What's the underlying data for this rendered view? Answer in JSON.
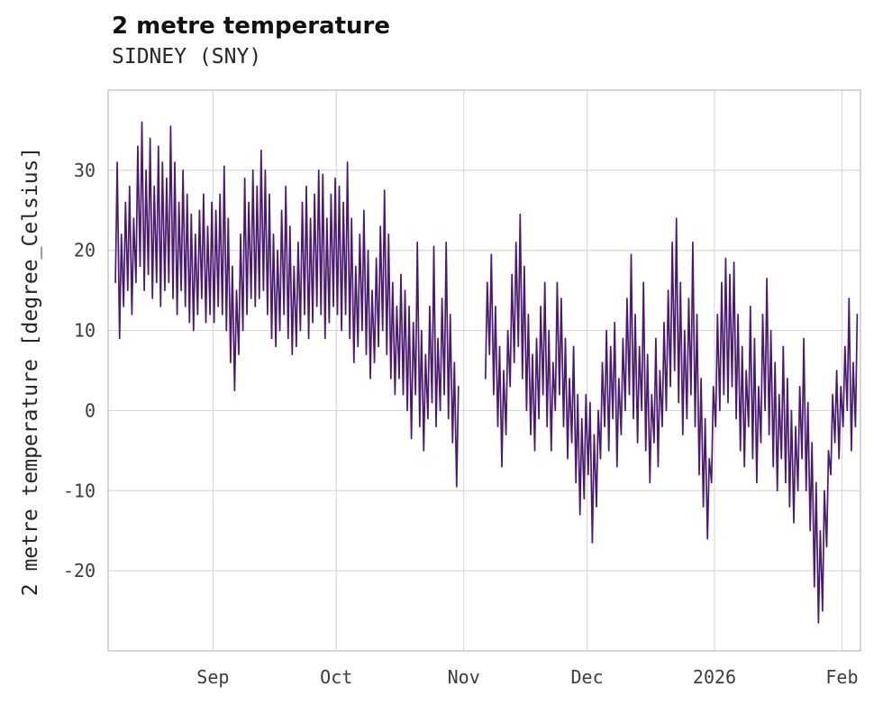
{
  "header": {
    "title": "2 metre temperature",
    "subtitle": "SIDNEY (SNY)"
  },
  "chart_data": {
    "type": "line",
    "title": "2 metre temperature",
    "subtitle": "SIDNEY (SNY)",
    "xlabel": "",
    "ylabel": "2 metre temperature [degree_Celsius]",
    "legend_position": "none",
    "grid": true,
    "line_color": "#4a1a70",
    "grid_color": "#d9d9d9",
    "border_color": "#c8c8c8",
    "tick_color": "#3d3d3d",
    "ylim": [
      -30,
      40
    ],
    "y_ticks": [
      -20,
      -10,
      0,
      10,
      20,
      30
    ],
    "x_range_days": [
      -1.5,
      181.5
    ],
    "x_ticks": [
      {
        "day": 24,
        "label": "Sep"
      },
      {
        "day": 54,
        "label": "Oct"
      },
      {
        "day": 85,
        "label": "Nov"
      },
      {
        "day": 115,
        "label": "Dec"
      },
      {
        "day": 146,
        "label": "2026"
      },
      {
        "day": 177,
        "label": "Feb"
      }
    ],
    "notes": "Hourly-resolution temperature trace shown as daily min/max envelope; data gap of ~6 days just before the Nov tick; absolute max ~36, absolute min ~-26.5 late January.",
    "series": [
      {
        "name": "2 metre temperature",
        "unit": "degree_Celsius",
        "daily_min_max": [
          [
            16,
            31
          ],
          [
            9,
            22
          ],
          [
            13,
            26
          ],
          [
            15,
            28
          ],
          [
            12,
            24
          ],
          [
            16,
            33
          ],
          [
            18,
            36
          ],
          [
            15,
            30
          ],
          [
            17,
            34
          ],
          [
            14,
            28
          ],
          [
            16,
            33
          ],
          [
            13,
            31
          ],
          [
            15,
            29
          ],
          [
            16,
            35.5
          ],
          [
            14,
            31
          ],
          [
            12,
            26
          ],
          [
            15,
            30
          ],
          [
            13,
            27
          ],
          [
            11,
            24.5
          ],
          [
            10,
            22
          ],
          [
            12,
            25
          ],
          [
            14,
            27
          ],
          [
            11,
            23
          ],
          [
            12,
            26
          ],
          [
            11,
            25
          ],
          [
            13,
            27
          ],
          [
            12,
            30.5
          ],
          [
            10,
            24
          ],
          [
            6,
            18
          ],
          [
            2.5,
            15
          ],
          [
            7,
            22
          ],
          [
            10,
            29
          ],
          [
            12,
            26
          ],
          [
            14,
            30
          ],
          [
            13,
            28
          ],
          [
            14,
            32.5
          ],
          [
            15,
            30
          ],
          [
            12,
            27
          ],
          [
            9,
            22
          ],
          [
            8,
            20
          ],
          [
            10,
            25
          ],
          [
            12,
            28
          ],
          [
            9,
            23
          ],
          [
            7,
            18
          ],
          [
            8,
            21
          ],
          [
            10,
            26
          ],
          [
            12,
            28
          ],
          [
            9,
            24
          ],
          [
            11,
            27
          ],
          [
            13,
            30
          ],
          [
            12,
            29.5
          ],
          [
            9,
            24
          ],
          [
            11,
            27
          ],
          [
            13,
            29
          ],
          [
            12,
            28
          ],
          [
            10,
            26
          ],
          [
            12,
            31
          ],
          [
            9,
            24
          ],
          [
            6,
            18
          ],
          [
            8,
            22
          ],
          [
            10,
            25
          ],
          [
            7,
            20
          ],
          [
            4,
            15
          ],
          [
            6,
            19
          ],
          [
            8,
            23
          ],
          [
            10,
            27.5
          ],
          [
            7,
            22
          ],
          [
            4,
            16
          ],
          [
            2,
            13
          ],
          [
            4,
            17
          ],
          [
            2,
            15
          ],
          [
            0,
            13
          ],
          [
            -3.5,
            11
          ],
          [
            2,
            21
          ],
          [
            -2,
            10
          ],
          [
            -5,
            7
          ],
          [
            -1,
            13
          ],
          [
            1,
            20.5
          ],
          [
            -2,
            9
          ],
          [
            0,
            14
          ],
          [
            2,
            21
          ],
          [
            -1,
            12
          ],
          [
            -4,
            6
          ],
          [
            -9.5,
            3
          ],
          null,
          null,
          null,
          null,
          null,
          null,
          [
            4,
            16
          ],
          [
            7,
            19.5
          ],
          [
            2,
            13
          ],
          [
            -2,
            8
          ],
          [
            -7,
            5
          ],
          [
            -3,
            10
          ],
          [
            3,
            17
          ],
          [
            6,
            21
          ],
          [
            8,
            24.5
          ],
          [
            4,
            18
          ],
          [
            0,
            12
          ],
          [
            -3,
            7
          ],
          [
            -5,
            9
          ],
          [
            -1,
            13
          ],
          [
            2,
            16
          ],
          [
            -2,
            10
          ],
          [
            -5,
            6
          ],
          [
            0,
            16
          ],
          [
            2,
            14
          ],
          [
            -2,
            9
          ],
          [
            -6,
            4
          ],
          [
            -4,
            8
          ],
          [
            -9,
            2
          ],
          [
            -13,
            -1
          ],
          [
            -11,
            2
          ],
          [
            -8,
            1
          ],
          [
            -16.5,
            -3
          ],
          [
            -12,
            0
          ],
          [
            -6,
            6
          ],
          [
            -2,
            10
          ],
          [
            -5,
            8
          ],
          [
            -1,
            11
          ],
          [
            -7,
            4
          ],
          [
            -3,
            9
          ],
          [
            0,
            14
          ],
          [
            2,
            19.5
          ],
          [
            -1,
            12
          ],
          [
            -4,
            8
          ],
          [
            0,
            16
          ],
          [
            -5,
            7
          ],
          [
            -9,
            2
          ],
          [
            -4,
            9
          ],
          [
            -7,
            5
          ],
          [
            -2,
            11
          ],
          [
            0,
            15
          ],
          [
            3,
            21
          ],
          [
            5,
            24
          ],
          [
            1,
            16
          ],
          [
            -3,
            10
          ],
          [
            -1,
            14
          ],
          [
            2,
            21
          ],
          [
            -2,
            12
          ],
          [
            -8,
            4
          ],
          [
            -12,
            -1
          ],
          [
            -16,
            -6
          ],
          [
            -9,
            3
          ],
          [
            -2,
            12
          ],
          [
            0,
            16
          ],
          [
            2,
            19
          ],
          [
            1,
            17
          ],
          [
            3,
            18.5
          ],
          [
            -1,
            12
          ],
          [
            -5,
            8
          ],
          [
            -7,
            5
          ],
          [
            -2,
            13
          ],
          [
            -6,
            9
          ],
          [
            -9,
            3
          ],
          [
            -4,
            12
          ],
          [
            0,
            16.5
          ],
          [
            -3,
            10
          ],
          [
            -7,
            6
          ],
          [
            -10,
            2
          ],
          [
            -6,
            8
          ],
          [
            -9,
            4
          ],
          [
            -12,
            0
          ],
          [
            -14,
            -2
          ],
          [
            -10,
            3
          ],
          [
            -6,
            9
          ],
          [
            -10,
            1
          ],
          [
            -15,
            -4
          ],
          [
            -22,
            -9
          ],
          [
            -26.5,
            -15
          ],
          [
            -25,
            -10
          ],
          [
            -17,
            -5
          ],
          [
            -8,
            2
          ],
          [
            -4,
            5
          ],
          [
            -6,
            3
          ],
          [
            -2,
            8
          ],
          [
            0,
            14
          ],
          [
            -5,
            6
          ],
          [
            -2,
            12
          ]
        ]
      }
    ]
  }
}
